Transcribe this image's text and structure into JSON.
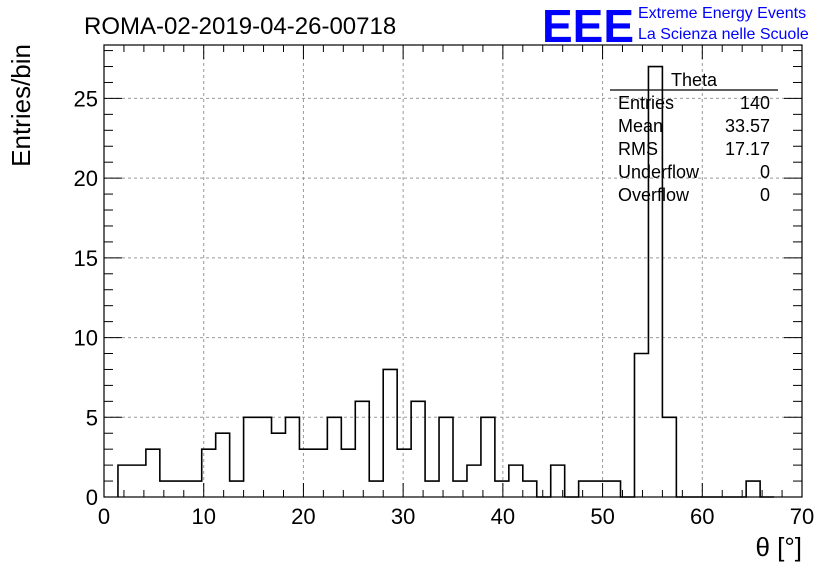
{
  "chart_data": {
    "type": "bar",
    "title": "ROMA-02-2019-04-26-00718",
    "xlabel": "θ [°]",
    "ylabel": "Entries/bin",
    "xlim": [
      0,
      70
    ],
    "ylim": [
      0,
      28.35
    ],
    "grid": true,
    "xticks": [
      0,
      10,
      20,
      30,
      40,
      50,
      60,
      70
    ],
    "yticks": [
      0,
      5,
      10,
      15,
      20,
      25
    ],
    "bin_edges_start": 1.4,
    "bin_width": 1.4,
    "values": [
      2,
      2,
      3,
      1,
      1,
      1,
      3,
      4,
      1,
      5,
      5,
      4,
      5,
      3,
      3,
      5,
      3,
      6,
      1,
      8,
      3,
      6,
      1,
      5,
      1,
      2,
      5,
      1,
      2,
      1,
      0,
      2,
      0,
      1,
      1,
      1,
      0,
      9,
      27,
      5,
      0,
      0,
      0,
      0,
      0,
      1,
      0
    ],
    "stats_box": {
      "name": "Theta",
      "rows": [
        {
          "label": "Entries",
          "value": "140"
        },
        {
          "label": "Mean",
          "value": "33.57"
        },
        {
          "label": "RMS",
          "value": "17.17"
        },
        {
          "label": "Underflow",
          "value": "0"
        },
        {
          "label": "Overflow",
          "value": "0"
        }
      ]
    }
  },
  "logo": {
    "letters": "EEE",
    "line1": "Extreme Energy Events",
    "line2": "La Scienza nelle Scuole",
    "color": "#0000ff"
  }
}
